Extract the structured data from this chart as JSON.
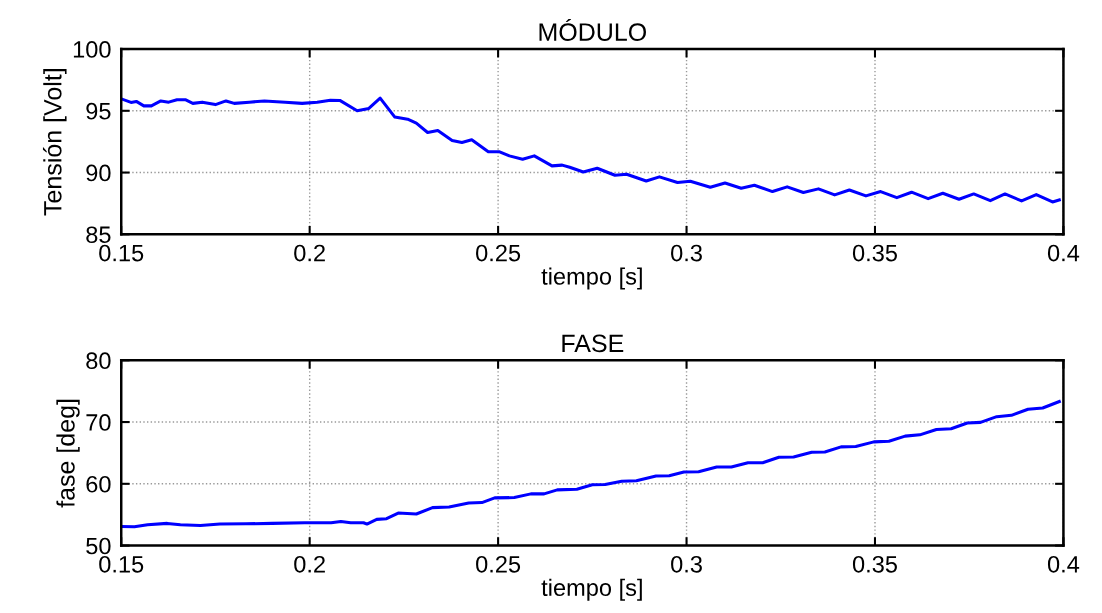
{
  "chart_data": [
    {
      "type": "line",
      "title": "MÓDULO",
      "xlabel": "tiempo [s]",
      "ylabel": "Tensión [Volt]",
      "xlim": [
        0.15,
        0.4
      ],
      "xticks": [
        0.15,
        0.2,
        0.25,
        0.3,
        0.35,
        0.4
      ],
      "ylim": [
        85,
        100
      ],
      "yticks": [
        85,
        90,
        95,
        100
      ],
      "grid": true,
      "line_style": "solid",
      "series": [
        {
          "color": "#0000ff",
          "x": [
            0.15,
            0.1526,
            0.154,
            0.156,
            0.158,
            0.1605,
            0.1626,
            0.1648,
            0.167,
            0.169,
            0.1715,
            0.175,
            0.1778,
            0.18,
            0.184,
            0.188,
            0.1935,
            0.198,
            0.202,
            0.2055,
            0.208,
            0.2126,
            0.2157,
            0.2187,
            0.2226,
            0.226,
            0.2283,
            0.2313,
            0.234,
            0.2378,
            0.2404,
            0.243,
            0.2474,
            0.2504,
            0.253,
            0.2565,
            0.2596,
            0.2643,
            0.267,
            0.269,
            0.2726,
            0.2763,
            0.281,
            0.2841,
            0.2893,
            0.2928,
            0.2976,
            0.301,
            0.3063,
            0.3102,
            0.3145,
            0.318,
            0.3228,
            0.3267,
            0.331,
            0.335,
            0.3393,
            0.3432,
            0.3476,
            0.3515,
            0.3558,
            0.3597,
            0.3641,
            0.368,
            0.3723,
            0.3762,
            0.3806,
            0.3845,
            0.3889,
            0.3928,
            0.3971,
            0.3989
          ],
          "values": [
            95.97,
            95.68,
            95.76,
            95.4,
            95.4,
            95.8,
            95.7,
            95.9,
            95.9,
            95.6,
            95.7,
            95.5,
            95.8,
            95.6,
            95.7,
            95.8,
            95.7,
            95.6,
            95.7,
            95.86,
            95.84,
            95.0,
            95.19,
            96.03,
            94.49,
            94.32,
            94.0,
            93.24,
            93.4,
            92.6,
            92.43,
            92.65,
            91.68,
            91.68,
            91.35,
            91.08,
            91.35,
            90.54,
            90.6,
            90.43,
            90.05,
            90.35,
            89.78,
            89.86,
            89.32,
            89.65,
            89.19,
            89.3,
            88.81,
            89.16,
            88.73,
            88.97,
            88.46,
            88.84,
            88.38,
            88.68,
            88.19,
            88.59,
            88.11,
            88.46,
            87.97,
            88.41,
            87.89,
            88.32,
            87.84,
            88.27,
            87.73,
            88.27,
            87.7,
            88.22,
            87.62,
            87.78
          ]
        }
      ]
    },
    {
      "type": "line",
      "title": "FASE",
      "xlabel": "tiempo [s]",
      "ylabel": "fase [deg]",
      "xlim": [
        0.15,
        0.4
      ],
      "xticks": [
        0.15,
        0.2,
        0.25,
        0.3,
        0.35,
        0.4
      ],
      "ylim": [
        50,
        80
      ],
      "yticks": [
        50,
        60,
        70,
        80
      ],
      "grid": true,
      "line_style": "solid",
      "series": [
        {
          "color": "#0000ff",
          "x": [
            0.15,
            0.1535,
            0.157,
            0.1622,
            0.1657,
            0.171,
            0.1762,
            0.1831,
            0.19,
            0.1987,
            0.2057,
            0.2083,
            0.2109,
            0.2143,
            0.2152,
            0.2178,
            0.2204,
            0.2235,
            0.2283,
            0.2326,
            0.237,
            0.2422,
            0.2457,
            0.2491,
            0.2543,
            0.2587,
            0.2622,
            0.2657,
            0.2709,
            0.275,
            0.2784,
            0.2828,
            0.2867,
            0.2919,
            0.2954,
            0.2993,
            0.3032,
            0.308,
            0.3119,
            0.3163,
            0.3202,
            0.3245,
            0.3284,
            0.3332,
            0.3367,
            0.341,
            0.3449,
            0.3497,
            0.3537,
            0.358,
            0.3619,
            0.3663,
            0.3702,
            0.3745,
            0.378,
            0.3823,
            0.3862,
            0.3906,
            0.3945,
            0.3989
          ],
          "values": [
            53.1,
            53.04,
            53.37,
            53.59,
            53.37,
            53.26,
            53.48,
            53.53,
            53.59,
            53.7,
            53.7,
            53.91,
            53.7,
            53.7,
            53.48,
            54.24,
            54.35,
            55.27,
            55.11,
            56.14,
            56.25,
            56.9,
            56.96,
            57.72,
            57.77,
            58.37,
            58.37,
            59.02,
            59.13,
            59.84,
            59.89,
            60.43,
            60.49,
            61.25,
            61.3,
            61.9,
            61.96,
            62.72,
            62.72,
            63.42,
            63.42,
            64.29,
            64.35,
            65.11,
            65.16,
            65.98,
            66.03,
            66.79,
            66.9,
            67.72,
            67.93,
            68.8,
            68.91,
            69.84,
            69.95,
            70.87,
            71.09,
            72.07,
            72.28,
            73.32
          ]
        }
      ]
    }
  ]
}
